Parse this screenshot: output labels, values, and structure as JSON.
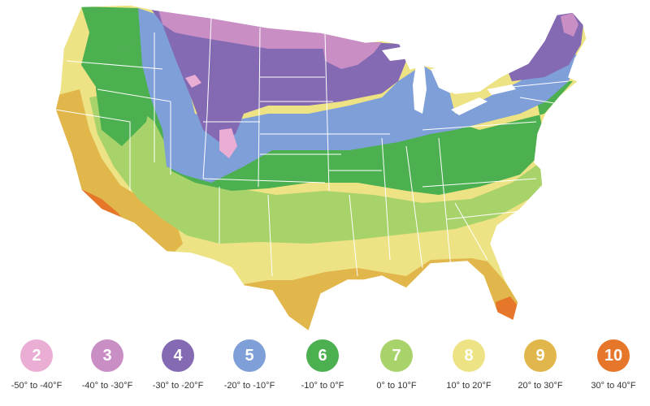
{
  "map": {
    "region": "Contiguous United States",
    "colors": {
      "z2": "#eaaed4",
      "z3": "#c98fc4",
      "z4": "#8469b3",
      "z5": "#7f9fd9",
      "z6": "#4caf50",
      "z7": "#a8d26a",
      "z8": "#ede384",
      "z9": "#e1b64a",
      "z10": "#e6762a",
      "borders": "#ffffff"
    }
  },
  "legend": {
    "items": [
      {
        "zone": "2",
        "range": "-50° to -40°F",
        "color": "#eaaed4"
      },
      {
        "zone": "3",
        "range": "-40° to -30°F",
        "color": "#c98fc4"
      },
      {
        "zone": "4",
        "range": "-30° to -20°F",
        "color": "#8469b3"
      },
      {
        "zone": "5",
        "range": "-20° to -10°F",
        "color": "#7f9fd9"
      },
      {
        "zone": "6",
        "range": "-10° to 0°F",
        "color": "#4caf50"
      },
      {
        "zone": "7",
        "range": "0° to 10°F",
        "color": "#a8d26a"
      },
      {
        "zone": "8",
        "range": "10° to 20°F",
        "color": "#ede384"
      },
      {
        "zone": "9",
        "range": "20° to 30°F",
        "color": "#e1b64a"
      },
      {
        "zone": "10",
        "range": "30° to 40°F",
        "color": "#e6762a"
      }
    ]
  }
}
